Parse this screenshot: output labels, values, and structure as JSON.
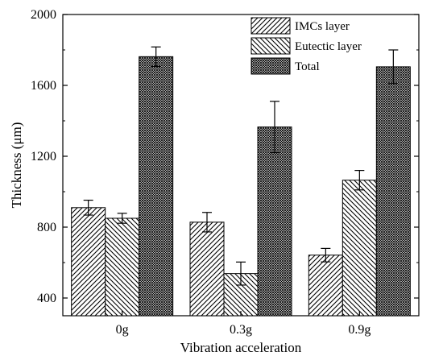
{
  "chart_data": {
    "type": "bar",
    "categories": [
      "0g",
      "0.3g",
      "0.9g"
    ],
    "series": [
      {
        "name": "IMCs layer",
        "pattern": "hatch-forward",
        "values": [
          910,
          828,
          642
        ],
        "errors": [
          42,
          55,
          38
        ]
      },
      {
        "name": "Eutectic layer",
        "pattern": "hatch-backward",
        "values": [
          850,
          538,
          1065
        ],
        "errors": [
          28,
          65,
          55
        ]
      },
      {
        "name": "Total",
        "pattern": "crosshatch-dense",
        "values": [
          1762,
          1365,
          1705
        ],
        "errors": [
          55,
          145,
          95
        ]
      }
    ],
    "xlabel": "Vibration acceleration",
    "ylabel": "Thickness (μm)",
    "ylim": [
      300,
      2000
    ],
    "yticks": [
      400,
      800,
      1200,
      1600,
      2000
    ],
    "legend_position": "top-right",
    "grid": false,
    "colors": {
      "stroke": "#000000",
      "background": "#ffffff"
    }
  }
}
